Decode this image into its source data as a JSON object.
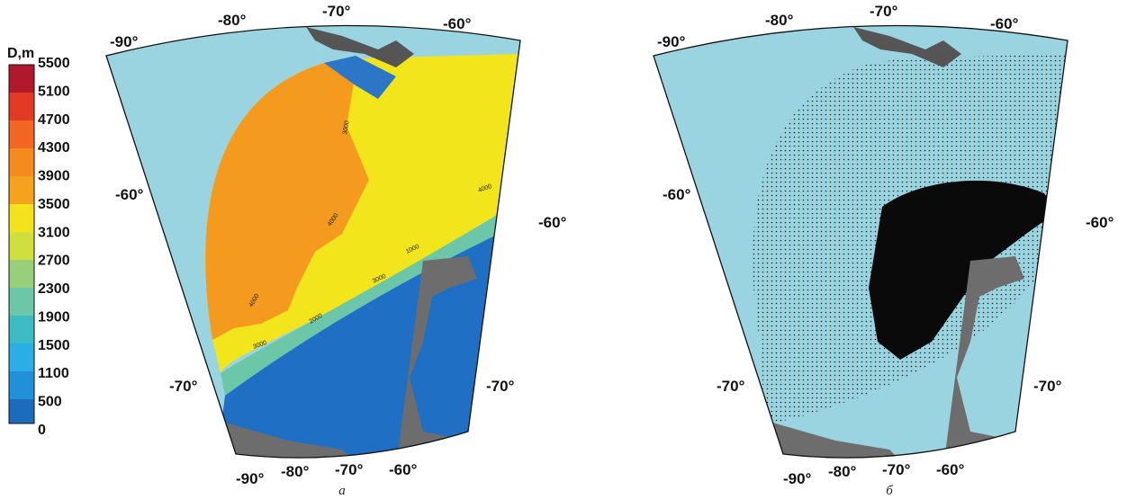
{
  "colorbar": {
    "title": "D,m",
    "ticks": [
      5500,
      5100,
      4700,
      4300,
      3900,
      3500,
      3100,
      2700,
      2300,
      1900,
      1500,
      1100,
      500,
      0
    ]
  },
  "panels": [
    {
      "caption": "а",
      "top_labels": [
        "-90°",
        "-80°",
        "-70°",
        "-60°"
      ],
      "left_labels": [
        "-60°",
        "-70°"
      ],
      "right_labels": [
        "-60°",
        "-70°"
      ],
      "bottom_labels": [
        "-90°",
        "-80°",
        "-70°",
        "-60°"
      ],
      "contour_labels": [
        "3000",
        "4000",
        "4000",
        "1000",
        "3000",
        "4000",
        "2000",
        "3000"
      ]
    },
    {
      "caption": "б",
      "top_labels": [
        "-90°",
        "-80°",
        "-70°",
        "-60°"
      ],
      "left_labels": [
        "-60°",
        "-70°"
      ],
      "right_labels": [
        "-60°",
        "-70°"
      ],
      "bottom_labels": [
        "-90°",
        "-80°",
        "-70°",
        "-60°"
      ]
    }
  ]
}
